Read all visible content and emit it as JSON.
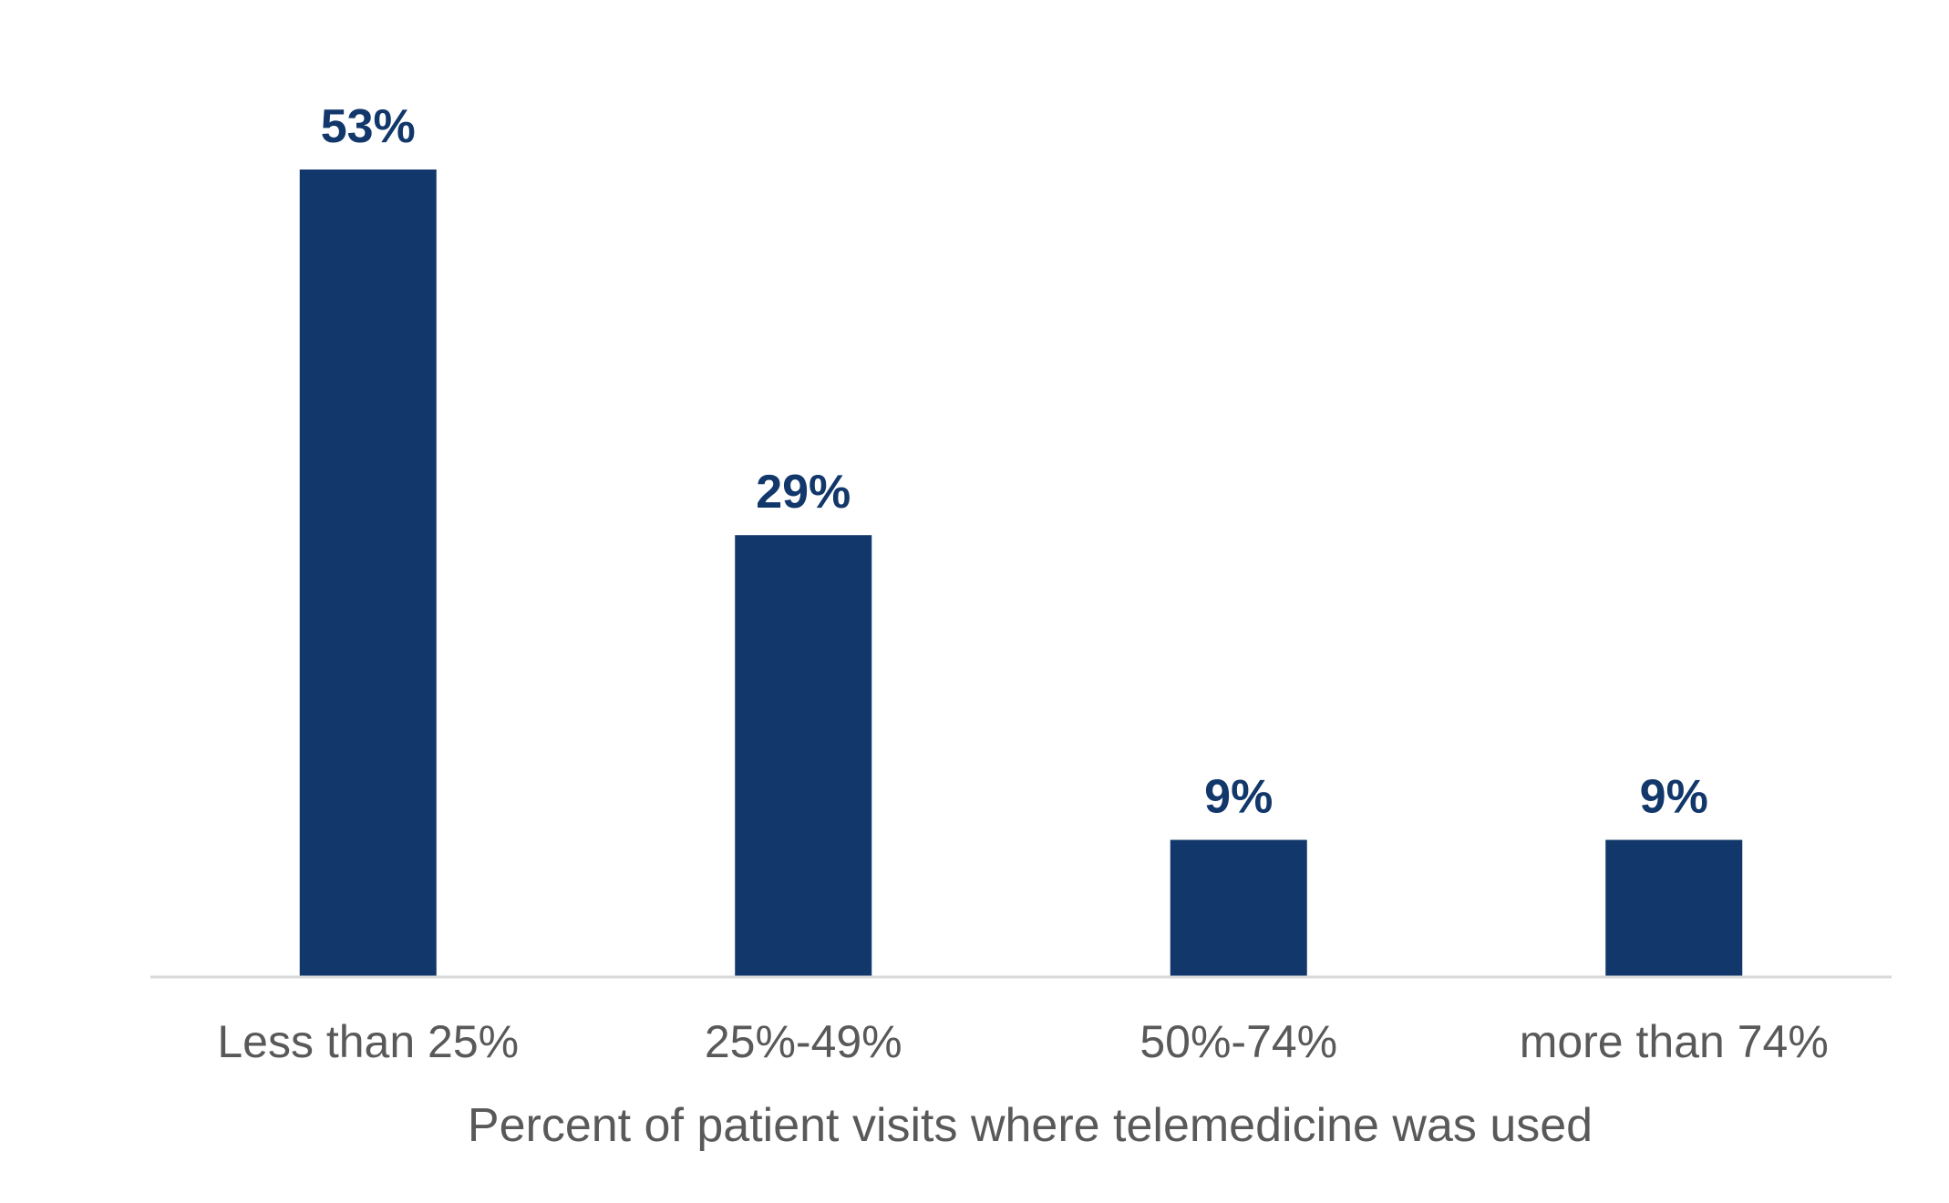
{
  "chart_data": {
    "type": "bar",
    "categories": [
      "Less than 25%",
      "25%-49%",
      "50%-74%",
      "more than 74%"
    ],
    "values": [
      53,
      29,
      9,
      9
    ],
    "value_labels": [
      "53%",
      "29%",
      "9%",
      "9%"
    ],
    "title": "",
    "xlabel": "Percent of patient visits where telemedicine was used",
    "ylabel": "",
    "ylim": [
      0,
      53
    ],
    "grid": false,
    "legend": "none",
    "colors": {
      "bar": "#12376A",
      "value_label": "#12376A",
      "tick_label": "#595959",
      "axis_title": "#595959",
      "axis_line": "#D9D9D9"
    }
  }
}
